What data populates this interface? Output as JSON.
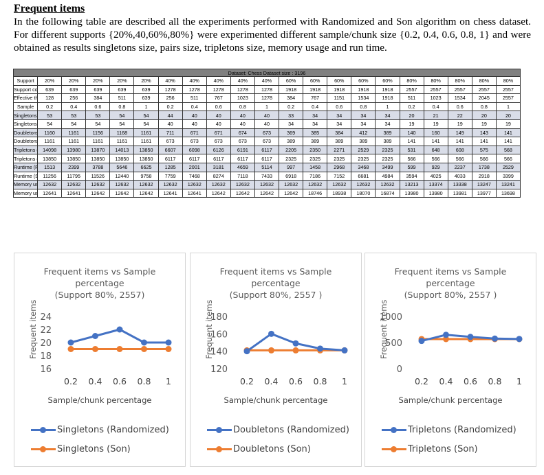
{
  "section": {
    "heading": "Frequent items",
    "paragraph": "In the following table are described all the experiments performed with Randomized and Son algorithm on chess dataset. For different supports {20%,40,60%,80%} were experimented different sample/chunk size {0.2, 0.4, 0.6, 0.8, 1} and were obtained as results singletons size, pairs size, tripletons size, memory usage and run time."
  },
  "table": {
    "title": "Dataset: Chess   Dataset size : 3196",
    "rows": [
      {
        "label": "Support",
        "shaded": false,
        "values": [
          "20%",
          "20%",
          "20%",
          "20%",
          "20%",
          "40%",
          "40%",
          "40%",
          "40%",
          "40%",
          "60%",
          "60%",
          "60%",
          "60%",
          "60%",
          "80%",
          "80%",
          "80%",
          "80%",
          "80%"
        ]
      },
      {
        "label": "Support count (threshold)",
        "shaded": false,
        "values": [
          "639",
          "639",
          "639",
          "639",
          "639",
          "1278",
          "1278",
          "1278",
          "1278",
          "1278",
          "1918",
          "1918",
          "1918",
          "1918",
          "1918",
          "2557",
          "2557",
          "2557",
          "2557",
          "2557"
        ]
      },
      {
        "label": "Effective threshold (support count)",
        "shaded": false,
        "values": [
          "128",
          "256",
          "384",
          "511",
          "639",
          "256",
          "511",
          "767",
          "1023",
          "1278",
          "384",
          "767",
          "1151",
          "1534",
          "1918",
          "511",
          "1023",
          "1534",
          "2045",
          "2557"
        ]
      },
      {
        "label": "Sample",
        "shaded": false,
        "values": [
          "0.2",
          "0.4",
          "0.6",
          "0.8",
          "1",
          "0.2",
          "0.4",
          "0.6",
          "0.8",
          "1",
          "0.2",
          "0.4",
          "0.6",
          "0.8",
          "1",
          "0.2",
          "0.4",
          "0.6",
          "0.8",
          "1"
        ]
      },
      {
        "label": "Singletons (Randomized)",
        "shaded": true,
        "values": [
          "53",
          "53",
          "53",
          "54",
          "54",
          "44",
          "40",
          "40",
          "40",
          "40",
          "33",
          "34",
          "34",
          "34",
          "34",
          "20",
          "21",
          "22",
          "20",
          "20"
        ]
      },
      {
        "label": "Singletons (Son)",
        "shaded": false,
        "values": [
          "54",
          "54",
          "54",
          "54",
          "54",
          "40",
          "40",
          "40",
          "40",
          "40",
          "34",
          "34",
          "34",
          "34",
          "34",
          "19",
          "19",
          "19",
          "19",
          "19"
        ]
      },
      {
        "label": "Doubletons (Randomized)",
        "shaded": true,
        "values": [
          "1160",
          "1161",
          "1156",
          "1168",
          "1161",
          "711",
          "671",
          "671",
          "674",
          "673",
          "369",
          "385",
          "384",
          "412",
          "389",
          "140",
          "160",
          "149",
          "143",
          "141"
        ]
      },
      {
        "label": "Doubletons (Son)",
        "shaded": false,
        "values": [
          "1161",
          "1161",
          "1161",
          "1161",
          "1161",
          "673",
          "673",
          "673",
          "673",
          "673",
          "389",
          "389",
          "389",
          "389",
          "389",
          "141",
          "141",
          "141",
          "141",
          "141"
        ]
      },
      {
        "label": "Tripletons (Randomized)",
        "shaded": true,
        "values": [
          "14098",
          "13980",
          "13870",
          "14013",
          "13850",
          "6607",
          "6098",
          "6126",
          "6191",
          "6117",
          "2205",
          "2350",
          "2271",
          "2529",
          "2325",
          "531",
          "648",
          "608",
          "575",
          "568"
        ]
      },
      {
        "label": "Tripletons (Son)",
        "shaded": false,
        "values": [
          "13850",
          "13850",
          "13850",
          "13850",
          "13850",
          "6117",
          "6117",
          "6117",
          "6117",
          "6117",
          "2325",
          "2325",
          "2325",
          "2325",
          "2325",
          "566",
          "566",
          "566",
          "566",
          "566"
        ]
      },
      {
        "label": "Runtime (Randomized) (milliseconds)",
        "shaded": true,
        "values": [
          "1513",
          "2399",
          "3788",
          "5646",
          "6625",
          "1285",
          "2001",
          "3181",
          "4659",
          "5114",
          "997",
          "1458",
          "2968",
          "3468",
          "3499",
          "599",
          "929",
          "2237",
          "1738",
          "2529"
        ]
      },
      {
        "label": "Runtime (Son) (milliseconds)",
        "shaded": false,
        "values": [
          "11256",
          "11795",
          "11526",
          "12440",
          "9758",
          "7759",
          "7468",
          "8274",
          "7118",
          "7433",
          "6918",
          "7186",
          "7152",
          "6681",
          "4984",
          "3594",
          "4025",
          "4033",
          "2918",
          "3399"
        ]
      },
      {
        "label": "Memory used (Randomized) (KB)",
        "shaded": true,
        "values": [
          "12632",
          "12632",
          "12632",
          "12632",
          "12632",
          "12632",
          "12632",
          "12632",
          "12632",
          "12632",
          "12632",
          "12632",
          "12632",
          "12632",
          "12632",
          "13213",
          "13374",
          "13338",
          "13247",
          "13241"
        ]
      },
      {
        "label": "Memory used (Son) (KB)",
        "shaded": false,
        "values": [
          "12641",
          "12641",
          "12642",
          "12642",
          "12642",
          "12641",
          "12641",
          "12642",
          "12642",
          "12642",
          "12642",
          "18746",
          "18938",
          "18070",
          "16874",
          "13980",
          "13980",
          "13981",
          "13977",
          "13698"
        ]
      }
    ]
  },
  "colors": {
    "randomized": "#4472c4",
    "son": "#ed7d31",
    "axis_text": "#595959",
    "grid": "#d9d9d9"
  },
  "chart_data": [
    {
      "type": "line",
      "title_lines": [
        "Frequent items vs Sample",
        "percentage",
        "(Support 80%, 2557)"
      ],
      "xlabel": "Sample/chunk  percentage",
      "ylabel": "Frequent items",
      "x": [
        0.2,
        0.4,
        0.6,
        0.8,
        1
      ],
      "x_tick_labels": [
        "0.2",
        "0.4",
        "0.6",
        "0.8",
        "1"
      ],
      "y_ticks": [
        16,
        18,
        20,
        22,
        24
      ],
      "ylim": [
        16,
        24
      ],
      "series": [
        {
          "name": "Singletons (Randomized)",
          "values": [
            20,
            21,
            22,
            20,
            20
          ]
        },
        {
          "name": "Singletons (Son)",
          "values": [
            19,
            19,
            19,
            19,
            19
          ]
        }
      ]
    },
    {
      "type": "line",
      "title_lines": [
        "Frequent items vs Sample",
        "percentage",
        "(Support 80%, 2557 )"
      ],
      "xlabel": "Sample/chunk  percentage",
      "ylabel": "Frequent items",
      "x": [
        0.2,
        0.4,
        0.6,
        0.8,
        1
      ],
      "x_tick_labels": [
        "0.2",
        "0.4",
        "0.6",
        "0.8",
        "1"
      ],
      "y_ticks": [
        120,
        140,
        160,
        180
      ],
      "ylim": [
        120,
        180
      ],
      "series": [
        {
          "name": "Doubletons (Randomized)",
          "values": [
            140,
            160,
            149,
            143,
            141
          ]
        },
        {
          "name": "Doubletons (Son)",
          "values": [
            141,
            141,
            141,
            141,
            141
          ]
        }
      ]
    },
    {
      "type": "line",
      "title_lines": [
        "Frequent items vs Sample",
        "percentage",
        "(Support 80%, 2557 )"
      ],
      "xlabel": "Sample/chunk  percentage",
      "ylabel": "Frequent items",
      "x": [
        0.2,
        0.4,
        0.6,
        0.8,
        1
      ],
      "x_tick_labels": [
        "0.2",
        "0.4",
        "0.6",
        "0.8",
        "1"
      ],
      "y_ticks": [
        0,
        500,
        1000
      ],
      "ylim": [
        0,
        1000
      ],
      "series": [
        {
          "name": "Tripletons (Randomized)",
          "values": [
            531,
            648,
            608,
            575,
            568
          ]
        },
        {
          "name": "Tripletons (Son)",
          "values": [
            566,
            566,
            566,
            566,
            566
          ]
        }
      ]
    }
  ]
}
